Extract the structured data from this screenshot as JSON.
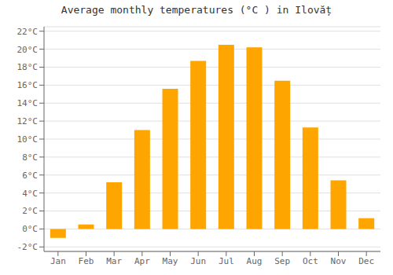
{
  "chart_data": {
    "type": "bar",
    "title": "Average monthly temperatures (°C ) in Ilovăț",
    "categories": [
      "Jan",
      "Feb",
      "Mar",
      "Apr",
      "May",
      "Jun",
      "Jul",
      "Aug",
      "Sep",
      "Oct",
      "Nov",
      "Dec"
    ],
    "values": [
      -1.0,
      0.5,
      5.2,
      11.0,
      15.6,
      18.7,
      20.5,
      20.2,
      16.5,
      11.3,
      5.4,
      1.2
    ],
    "color": "#FFA500",
    "ylim": [
      -2.5,
      22.5
    ],
    "yticks": [
      {
        "value": -2,
        "label": "-2°C"
      },
      {
        "value": 0,
        "label": "0°C"
      },
      {
        "value": 2,
        "label": "2°C"
      },
      {
        "value": 4,
        "label": "4°C"
      },
      {
        "value": 6,
        "label": "6°C"
      },
      {
        "value": 8,
        "label": "8°C"
      },
      {
        "value": 10,
        "label": "10°C"
      },
      {
        "value": 12,
        "label": "12°C"
      },
      {
        "value": 14,
        "label": "14°C"
      },
      {
        "value": 16,
        "label": "16°C"
      },
      {
        "value": 18,
        "label": "18°C"
      },
      {
        "value": 20,
        "label": "20°C"
      },
      {
        "value": 22,
        "label": "22°C"
      }
    ],
    "grid": true
  }
}
